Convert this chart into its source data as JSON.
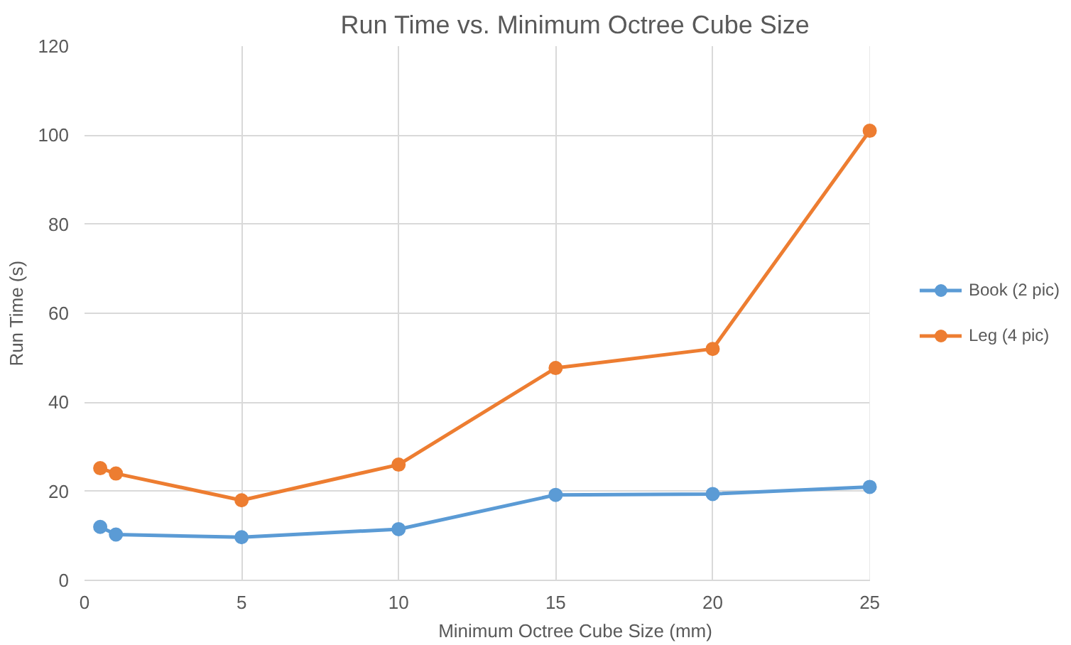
{
  "chart_data": {
    "type": "line",
    "title": "Run Time vs. Minimum Octree Cube Size",
    "xlabel": "Minimum Octree Cube Size (mm)",
    "ylabel": "Run Time (s)",
    "x": [
      0.5,
      1,
      5,
      10,
      15,
      20,
      25
    ],
    "series": [
      {
        "name": "Book (2 pic)",
        "color": "#5b9bd5",
        "values": [
          12,
          10.3,
          9.7,
          11.5,
          19.2,
          19.4,
          21
        ]
      },
      {
        "name": "Leg (4 pic)",
        "color": "#ed7d31",
        "values": [
          25.2,
          24,
          18,
          26,
          47.7,
          52,
          101
        ]
      }
    ],
    "xlim": [
      0,
      25
    ],
    "xticks": [
      0,
      5,
      10,
      15,
      20,
      25
    ],
    "ylim": [
      0,
      120
    ],
    "yticks": [
      0,
      20,
      40,
      60,
      80,
      100,
      120
    ],
    "grid": true,
    "legend": "right",
    "marker": "circle",
    "line_style": "solid"
  }
}
